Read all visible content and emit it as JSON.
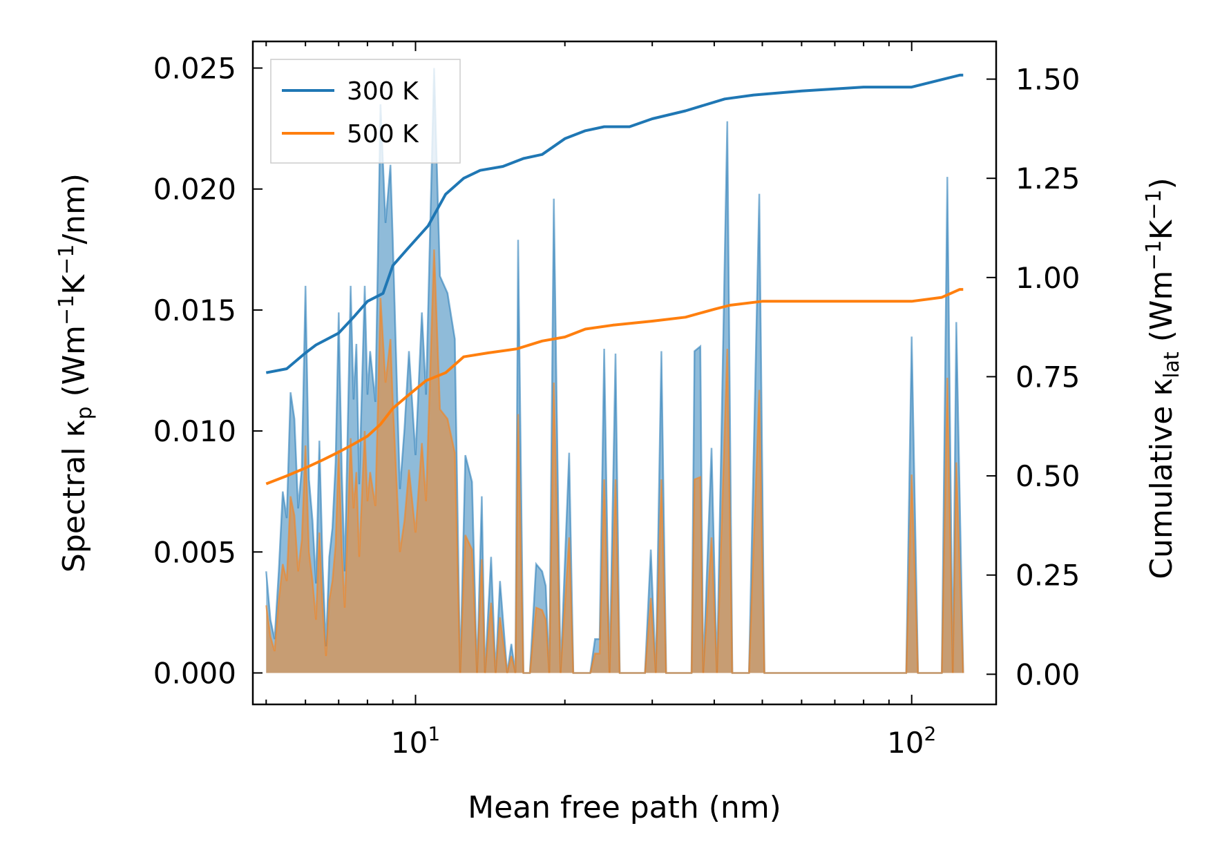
{
  "chart_data": {
    "type": "line",
    "title": "",
    "xlabel": "Mean free path (nm)",
    "ylabel_left": {
      "main": "Spectral κ",
      "sub": "p",
      "rest": " (Wm",
      "sup1": "−1",
      "mid": "K",
      "sup2": "−1",
      "end": "/nm)"
    },
    "ylabel_right": {
      "main": "Cumulative κ",
      "sub": "lat",
      "rest": " (Wm",
      "sup1": "−1",
      "mid": "K",
      "sup2": "−1",
      "end": ")"
    },
    "xscale": "log",
    "xlim": [
      4.7,
      148
    ],
    "ylim_left": [
      -0.0013,
      0.0261
    ],
    "ylim_right": [
      -0.076,
      1.595
    ],
    "x_ticks": [
      {
        "value": 10,
        "base": "10",
        "exp": "1"
      },
      {
        "value": 100,
        "base": "10",
        "exp": "2"
      }
    ],
    "y_ticks_left": [
      "0.000",
      "0.005",
      "0.010",
      "0.015",
      "0.020",
      "0.025"
    ],
    "y_ticks_right": [
      "0.00",
      "0.25",
      "0.50",
      "0.75",
      "1.00",
      "1.25",
      "1.50"
    ],
    "legend": {
      "position": "top-left",
      "entries": [
        {
          "name": "300 K",
          "color": "#1f77b4"
        },
        {
          "name": "500 K",
          "color": "#ff7f0e"
        }
      ]
    },
    "series": [
      {
        "name": "300 K",
        "color": "#1f77b4",
        "spectral": [
          [
            5.0,
            0.0042
          ],
          [
            5.1,
            0.0022
          ],
          [
            5.2,
            0.0014
          ],
          [
            5.3,
            0.0042
          ],
          [
            5.4,
            0.0075
          ],
          [
            5.5,
            0.0064
          ],
          [
            5.6,
            0.0116
          ],
          [
            5.7,
            0.0105
          ],
          [
            5.8,
            0.0068
          ],
          [
            5.9,
            0.0085
          ],
          [
            6.0,
            0.016
          ],
          [
            6.1,
            0.008
          ],
          [
            6.2,
            0.0063
          ],
          [
            6.3,
            0.0037
          ],
          [
            6.4,
            0.0096
          ],
          [
            6.5,
            0.0044
          ],
          [
            6.6,
            0.0011
          ],
          [
            6.7,
            0.0048
          ],
          [
            6.8,
            0.006
          ],
          [
            6.9,
            0.0087
          ],
          [
            7.0,
            0.0149
          ],
          [
            7.1,
            0.0084
          ],
          [
            7.2,
            0.0042
          ],
          [
            7.4,
            0.016
          ],
          [
            7.5,
            0.0113
          ],
          [
            7.6,
            0.0136
          ],
          [
            7.7,
            0.0078
          ],
          [
            7.9,
            0.016
          ],
          [
            8.0,
            0.0115
          ],
          [
            8.1,
            0.0133
          ],
          [
            8.3,
            0.0112
          ],
          [
            8.5,
            0.0235
          ],
          [
            8.7,
            0.0186
          ],
          [
            8.9,
            0.021
          ],
          [
            9.0,
            0.0179
          ],
          [
            9.3,
            0.0076
          ],
          [
            9.5,
            0.0101
          ],
          [
            9.7,
            0.0133
          ],
          [
            10.0,
            0.009
          ],
          [
            10.3,
            0.0149
          ],
          [
            10.5,
            0.0115
          ],
          [
            10.9,
            0.025
          ],
          [
            11.2,
            0.0164
          ],
          [
            11.6,
            0.0157
          ],
          [
            12.0,
            0.0138
          ],
          [
            12.3,
            0.0
          ],
          [
            12.6,
            0.009
          ],
          [
            13.0,
            0.0079
          ],
          [
            13.3,
            0.0
          ],
          [
            13.6,
            0.0073
          ],
          [
            13.8,
            0.0
          ],
          [
            14.2,
            0.0048
          ],
          [
            14.5,
            0.0
          ],
          [
            14.8,
            0.0038
          ],
          [
            15.3,
            0.0
          ],
          [
            15.6,
            0.0012
          ],
          [
            15.9,
            0.0
          ],
          [
            16.1,
            0.0179
          ],
          [
            16.5,
            0.0
          ],
          [
            17.0,
            0.0
          ],
          [
            17.5,
            0.0045
          ],
          [
            18.0,
            0.0042
          ],
          [
            18.3,
            0.0036
          ],
          [
            18.6,
            0.0
          ],
          [
            19.0,
            0.0196
          ],
          [
            19.6,
            0.0
          ],
          [
            20.4,
            0.0091
          ],
          [
            20.8,
            0.0
          ],
          [
            21.5,
            0.0
          ],
          [
            22.5,
            0.0
          ],
          [
            23.0,
            0.0014
          ],
          [
            23.5,
            0.0014
          ],
          [
            24.0,
            0.0134
          ],
          [
            24.6,
            0.0
          ],
          [
            25.3,
            0.0132
          ],
          [
            25.8,
            0.0
          ],
          [
            27.0,
            0.0
          ],
          [
            29.0,
            0.0
          ],
          [
            29.8,
            0.0051
          ],
          [
            30.5,
            0.0
          ],
          [
            31.3,
            0.0133
          ],
          [
            32.0,
            0.0
          ],
          [
            36.0,
            0.0
          ],
          [
            36.5,
            0.0133
          ],
          [
            37.5,
            0.0135
          ],
          [
            38.0,
            0.0
          ],
          [
            39.5,
            0.0093
          ],
          [
            40.5,
            0.0
          ],
          [
            42.5,
            0.0228
          ],
          [
            43.5,
            0.0
          ],
          [
            47.0,
            0.0
          ],
          [
            49.3,
            0.0198
          ],
          [
            50.5,
            0.0
          ],
          [
            97.5,
            0.0
          ],
          [
            100.0,
            0.0139
          ],
          [
            103.0,
            0.0
          ],
          [
            115.0,
            0.0
          ],
          [
            118.0,
            0.0205
          ],
          [
            121.0,
            0.0
          ],
          [
            123.0,
            0.0145
          ],
          [
            127.0,
            0.0
          ]
        ],
        "cumulative": [
          [
            5.0,
            0.76
          ],
          [
            5.5,
            0.77
          ],
          [
            6.0,
            0.81
          ],
          [
            6.3,
            0.83
          ],
          [
            7.0,
            0.86
          ],
          [
            7.5,
            0.9
          ],
          [
            8.0,
            0.94
          ],
          [
            8.6,
            0.96
          ],
          [
            9.0,
            1.03
          ],
          [
            9.6,
            1.07
          ],
          [
            10.6,
            1.13
          ],
          [
            11.5,
            1.21
          ],
          [
            12.5,
            1.25
          ],
          [
            13.5,
            1.27
          ],
          [
            15.0,
            1.28
          ],
          [
            16.5,
            1.3
          ],
          [
            18.0,
            1.31
          ],
          [
            20.0,
            1.35
          ],
          [
            22.0,
            1.37
          ],
          [
            24.0,
            1.38
          ],
          [
            27.0,
            1.38
          ],
          [
            30.0,
            1.4
          ],
          [
            35.0,
            1.42
          ],
          [
            42.0,
            1.45
          ],
          [
            48.0,
            1.46
          ],
          [
            60.0,
            1.47
          ],
          [
            80.0,
            1.48
          ],
          [
            100.0,
            1.48
          ],
          [
            116.0,
            1.5
          ],
          [
            125.0,
            1.51
          ],
          [
            127.0,
            1.51
          ]
        ]
      },
      {
        "name": "500 K",
        "color": "#ff7f0e",
        "spectral": [
          [
            5.0,
            0.0028
          ],
          [
            5.1,
            0.0015
          ],
          [
            5.2,
            0.0009
          ],
          [
            5.3,
            0.003
          ],
          [
            5.4,
            0.0045
          ],
          [
            5.5,
            0.0038
          ],
          [
            5.6,
            0.0073
          ],
          [
            5.7,
            0.0065
          ],
          [
            5.8,
            0.0042
          ],
          [
            5.9,
            0.0055
          ],
          [
            6.0,
            0.0094
          ],
          [
            6.1,
            0.005
          ],
          [
            6.2,
            0.0038
          ],
          [
            6.3,
            0.0022
          ],
          [
            6.4,
            0.0058
          ],
          [
            6.5,
            0.0027
          ],
          [
            6.6,
            0.0007
          ],
          [
            6.7,
            0.003
          ],
          [
            6.8,
            0.0038
          ],
          [
            6.9,
            0.0053
          ],
          [
            7.0,
            0.0092
          ],
          [
            7.1,
            0.0052
          ],
          [
            7.2,
            0.0027
          ],
          [
            7.4,
            0.0097
          ],
          [
            7.5,
            0.0068
          ],
          [
            7.6,
            0.0083
          ],
          [
            7.7,
            0.0048
          ],
          [
            7.9,
            0.01
          ],
          [
            8.0,
            0.0071
          ],
          [
            8.1,
            0.0083
          ],
          [
            8.3,
            0.0069
          ],
          [
            8.5,
            0.0155
          ],
          [
            8.7,
            0.012
          ],
          [
            8.9,
            0.0138
          ],
          [
            9.0,
            0.0112
          ],
          [
            9.3,
            0.005
          ],
          [
            9.5,
            0.0063
          ],
          [
            9.7,
            0.0084
          ],
          [
            10.0,
            0.0058
          ],
          [
            10.3,
            0.0095
          ],
          [
            10.5,
            0.0071
          ],
          [
            10.9,
            0.0175
          ],
          [
            11.2,
            0.0109
          ],
          [
            11.6,
            0.0105
          ],
          [
            12.0,
            0.0091
          ],
          [
            12.3,
            0.0
          ],
          [
            12.6,
            0.0057
          ],
          [
            13.0,
            0.0051
          ],
          [
            13.3,
            0.0
          ],
          [
            13.6,
            0.0047
          ],
          [
            13.8,
            0.0
          ],
          [
            14.2,
            0.0029
          ],
          [
            14.5,
            0.0
          ],
          [
            14.8,
            0.0023
          ],
          [
            15.3,
            0.0
          ],
          [
            15.6,
            0.0007
          ],
          [
            15.9,
            0.0
          ],
          [
            16.1,
            0.0107
          ],
          [
            16.5,
            0.0
          ],
          [
            17.0,
            0.0
          ],
          [
            17.5,
            0.0027
          ],
          [
            18.0,
            0.0026
          ],
          [
            18.3,
            0.0022
          ],
          [
            18.6,
            0.0
          ],
          [
            19.0,
            0.012
          ],
          [
            19.6,
            0.0
          ],
          [
            20.4,
            0.0056
          ],
          [
            20.8,
            0.0
          ],
          [
            21.5,
            0.0
          ],
          [
            22.5,
            0.0
          ],
          [
            23.0,
            0.0008
          ],
          [
            23.5,
            0.0008
          ],
          [
            24.0,
            0.008
          ],
          [
            24.6,
            0.0
          ],
          [
            25.3,
            0.008
          ],
          [
            25.8,
            0.0
          ],
          [
            27.0,
            0.0
          ],
          [
            29.0,
            0.0
          ],
          [
            29.8,
            0.0031
          ],
          [
            30.5,
            0.0
          ],
          [
            31.3,
            0.008
          ],
          [
            32.0,
            0.0
          ],
          [
            36.0,
            0.0
          ],
          [
            36.5,
            0.008
          ],
          [
            37.5,
            0.0081
          ],
          [
            38.0,
            0.0
          ],
          [
            39.5,
            0.0056
          ],
          [
            40.5,
            0.0
          ],
          [
            42.5,
            0.0134
          ],
          [
            43.5,
            0.0
          ],
          [
            47.0,
            0.0
          ],
          [
            49.3,
            0.0117
          ],
          [
            50.5,
            0.0
          ],
          [
            97.5,
            0.0
          ],
          [
            100.0,
            0.0082
          ],
          [
            103.0,
            0.0
          ],
          [
            115.0,
            0.0
          ],
          [
            118.0,
            0.0122
          ],
          [
            121.0,
            0.0
          ],
          [
            123.0,
            0.0087
          ],
          [
            127.0,
            0.0
          ]
        ],
        "cumulative": [
          [
            5.0,
            0.48
          ],
          [
            5.5,
            0.5
          ],
          [
            6.0,
            0.52
          ],
          [
            6.5,
            0.54
          ],
          [
            7.0,
            0.56
          ],
          [
            7.5,
            0.58
          ],
          [
            8.0,
            0.6
          ],
          [
            8.5,
            0.63
          ],
          [
            9.0,
            0.67
          ],
          [
            9.6,
            0.7
          ],
          [
            10.5,
            0.74
          ],
          [
            11.5,
            0.76
          ],
          [
            12.5,
            0.8
          ],
          [
            14.0,
            0.81
          ],
          [
            16.0,
            0.82
          ],
          [
            18.0,
            0.84
          ],
          [
            20.0,
            0.85
          ],
          [
            22.0,
            0.87
          ],
          [
            25.0,
            0.88
          ],
          [
            30.0,
            0.89
          ],
          [
            35.0,
            0.9
          ],
          [
            40.0,
            0.92
          ],
          [
            43.0,
            0.93
          ],
          [
            50.0,
            0.94
          ],
          [
            70.0,
            0.94
          ],
          [
            100.0,
            0.94
          ],
          [
            115.0,
            0.95
          ],
          [
            125.0,
            0.97
          ],
          [
            127.0,
            0.97
          ]
        ]
      }
    ]
  }
}
